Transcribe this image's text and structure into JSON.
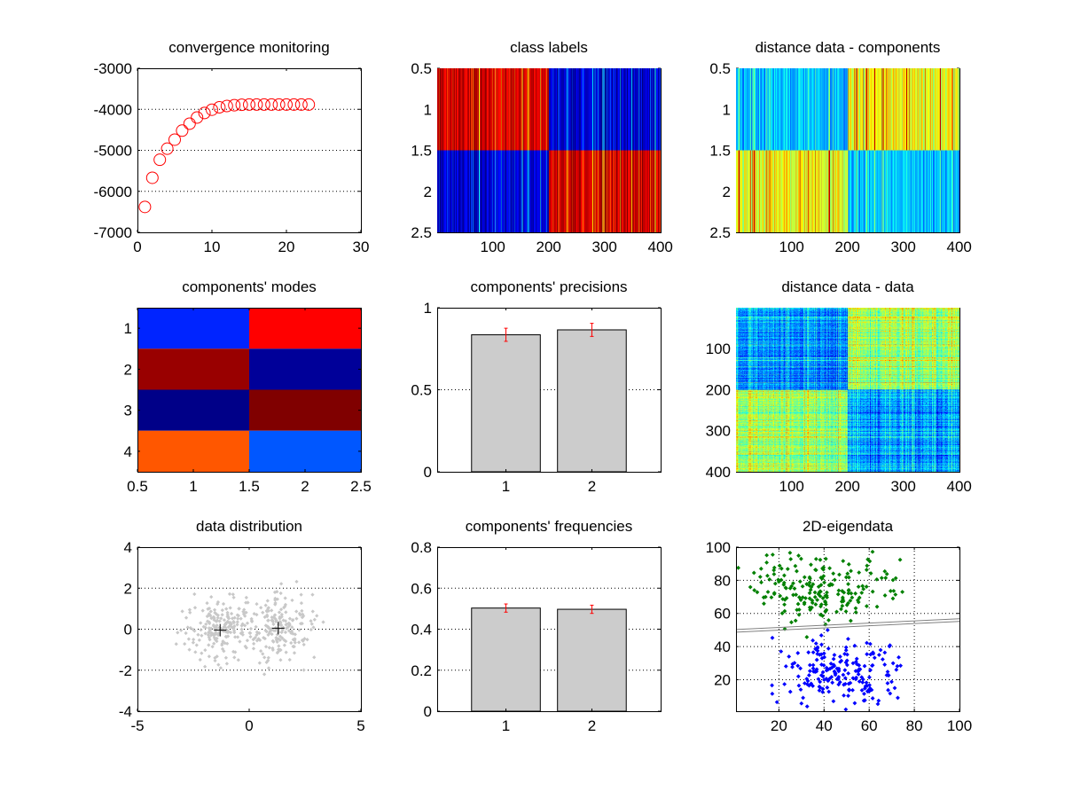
{
  "figure": {
    "background": "#ffffff"
  },
  "chart_data": [
    {
      "id": "convergence",
      "type": "scatter",
      "title": "convergence monitoring",
      "marker": "circle-open",
      "color": "#ff0000",
      "x": [
        1,
        2,
        3,
        4,
        5,
        6,
        7,
        8,
        9,
        10,
        11,
        12,
        13,
        14,
        15,
        16,
        17,
        18,
        19,
        20,
        21,
        22,
        23
      ],
      "y": [
        -6380,
        -5670,
        -5230,
        -4960,
        -4740,
        -4520,
        -4350,
        -4200,
        -4090,
        -4010,
        -3950,
        -3920,
        -3900,
        -3890,
        -3885,
        -3885,
        -3885,
        -3885,
        -3885,
        -3885,
        -3885,
        -3885,
        -3885
      ],
      "xlim": [
        0,
        30
      ],
      "ylim": [
        -7000,
        -3000
      ],
      "xticks": [
        "0",
        "10",
        "20",
        "30"
      ],
      "yticks": [
        "-7000",
        "-6000",
        "-5000",
        "-4000",
        "-3000"
      ],
      "grid": "y"
    },
    {
      "id": "class-labels",
      "type": "heatmap",
      "title": "class labels",
      "colormap": "jet",
      "rows": 2,
      "cols": 400,
      "block_means": [
        [
          0.9,
          0.1
        ],
        [
          0.1,
          0.9
        ]
      ],
      "xlim": [
        0.5,
        400.5
      ],
      "ylim": [
        0.5,
        2.5
      ],
      "y_reversed": true,
      "xticks": [
        "100",
        "200",
        "300",
        "400"
      ],
      "yticks": [
        "0.5",
        "1",
        "1.5",
        "2",
        "2.5"
      ]
    },
    {
      "id": "distance-components",
      "type": "heatmap",
      "title": "distance data - components",
      "colormap": "jet",
      "rows": 2,
      "cols": 400,
      "block_means": [
        [
          0.33,
          0.6
        ],
        [
          0.6,
          0.33
        ]
      ],
      "xlim": [
        0.5,
        400.5
      ],
      "ylim": [
        0.5,
        2.5
      ],
      "y_reversed": true,
      "xticks": [
        "100",
        "200",
        "300",
        "400"
      ],
      "yticks": [
        "0.5",
        "1",
        "1.5",
        "2",
        "2.5"
      ]
    },
    {
      "id": "modes",
      "type": "heatmap",
      "title": "components' modes",
      "colormap": "jet",
      "values": [
        [
          0.16,
          0.875
        ],
        [
          0.975,
          0.025
        ],
        [
          0.008,
          1.0
        ],
        [
          0.79,
          0.21
        ]
      ],
      "xlim": [
        0.5,
        2.5
      ],
      "ylim": [
        0.5,
        4.5
      ],
      "y_reversed": true,
      "xticks": [
        "0.5",
        "1",
        "1.5",
        "2",
        "2.5"
      ],
      "yticks": [
        "1",
        "2",
        "3",
        "4"
      ]
    },
    {
      "id": "precisions",
      "type": "bar",
      "title": "components' precisions",
      "categories": [
        "1",
        "2"
      ],
      "values": [
        0.835,
        0.865
      ],
      "errors": [
        0.04,
        0.04
      ],
      "bar_color": "#cccccc",
      "error_color": "#ff0000",
      "xlim": [
        0.2,
        2.8
      ],
      "ylim": [
        0,
        1
      ],
      "xticks": [
        "1",
        "2"
      ],
      "yticks": [
        "0",
        "0.5",
        "1"
      ],
      "grid": "y"
    },
    {
      "id": "distance-data",
      "type": "heatmap",
      "title": "distance data - data",
      "colormap": "jet",
      "rows": 400,
      "cols": 400,
      "block_means": [
        [
          0.3,
          0.55
        ],
        [
          0.55,
          0.3
        ]
      ],
      "xlim": [
        0.5,
        400.5
      ],
      "ylim": [
        0.5,
        400.5
      ],
      "y_reversed": true,
      "xticks": [
        "100",
        "200",
        "300",
        "400"
      ],
      "yticks": [
        "100",
        "200",
        "300",
        "400"
      ]
    },
    {
      "id": "data-distribution",
      "type": "scatter",
      "title": "data distribution",
      "point_color": "#c8c8c8",
      "clusters": [
        {
          "center": [
            -1.3,
            -0.05
          ],
          "count": 200
        },
        {
          "center": [
            1.3,
            0.05
          ],
          "count": 200
        }
      ],
      "centers_marker": "plus",
      "centers_color": "#000000",
      "xlim": [
        -5,
        5
      ],
      "ylim": [
        -4,
        4
      ],
      "xticks": [
        "-5",
        "0",
        "5"
      ],
      "yticks": [
        "-4",
        "-2",
        "0",
        "2",
        "4"
      ],
      "grid": "y"
    },
    {
      "id": "frequencies",
      "type": "bar",
      "title": "components' frequencies",
      "categories": [
        "1",
        "2"
      ],
      "values": [
        0.503,
        0.497
      ],
      "errors": [
        0.02,
        0.02
      ],
      "bar_color": "#cccccc",
      "error_color": "#ff0000",
      "xlim": [
        0.2,
        2.8
      ],
      "ylim": [
        0,
        0.8
      ],
      "xticks": [
        "1",
        "2"
      ],
      "yticks": [
        "0",
        "0.2",
        "0.4",
        "0.6",
        "0.8"
      ],
      "grid": "y"
    },
    {
      "id": "eigendata",
      "type": "scatter",
      "title": "2D-eigendata",
      "clusters": [
        {
          "center": [
            40,
            75
          ],
          "count": 200,
          "color": "#008000"
        },
        {
          "center": [
            47,
            25
          ],
          "count": 200,
          "color": "#0000ff"
        }
      ],
      "boundary": {
        "from": [
          1,
          49.5
        ],
        "to": [
          100,
          56
        ],
        "color": "#808080"
      },
      "xlim": [
        1,
        100
      ],
      "ylim": [
        1,
        100
      ],
      "xticks": [
        "20",
        "40",
        "60",
        "80",
        "100"
      ],
      "yticks": [
        "20",
        "40",
        "60",
        "80",
        "100"
      ],
      "grid": "xy"
    }
  ]
}
